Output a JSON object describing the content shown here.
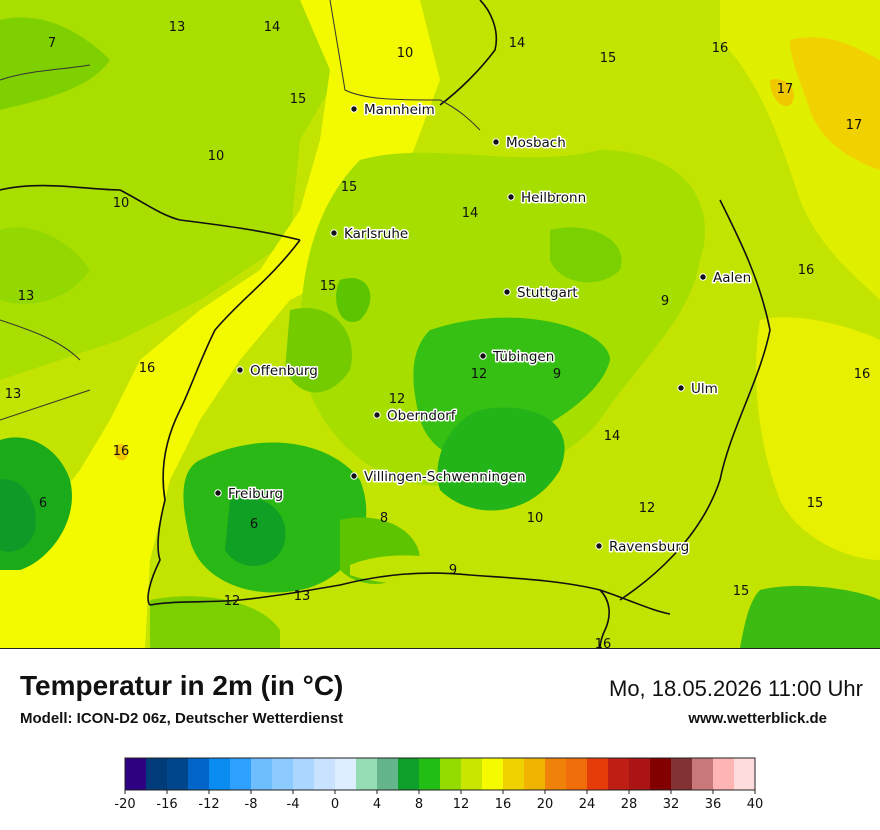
{
  "title": "Temperatur in 2m (in °C)",
  "model": "Modell: ICON-D2 06z, Deutscher Wetterdienst",
  "datetime": "Mo, 18.05.2026 11:00 Uhr",
  "website": "www.wetterblick.de",
  "cities": [
    {
      "name": "Mannheim"
    },
    {
      "name": "Mosbach"
    },
    {
      "name": "Heilbronn"
    },
    {
      "name": "Karlsruhe"
    },
    {
      "name": "Aalen"
    },
    {
      "name": "Stuttgart"
    },
    {
      "name": "Tübingen"
    },
    {
      "name": "Offenburg"
    },
    {
      "name": "Ulm"
    },
    {
      "name": "Oberndorf"
    },
    {
      "name": "Villingen-Schwenningen"
    },
    {
      "name": "Freiburg"
    },
    {
      "name": "Ravensburg"
    }
  ],
  "temperature_labels": [
    "7",
    "13",
    "14",
    "10",
    "14",
    "15",
    "16",
    "17",
    "15",
    "17",
    "10",
    "15",
    "10",
    "14",
    "13",
    "13",
    "15",
    "16",
    "9",
    "9",
    "13",
    "16",
    "12",
    "9",
    "16",
    "12",
    "14",
    "16",
    "6",
    "6",
    "8",
    "10",
    "12",
    "15",
    "9",
    "12",
    "13",
    "15",
    "16"
  ],
  "legend": {
    "ticks": [
      "-20",
      "-16",
      "-12",
      "-8",
      "-4",
      "0",
      "4",
      "8",
      "12",
      "16",
      "20",
      "24",
      "28",
      "32",
      "36",
      "40"
    ],
    "colors": [
      "#2f0082",
      "#003c7a",
      "#00468c",
      "#0064c8",
      "#0a8cf0",
      "#2ea0ff",
      "#6ebeff",
      "#8ccaff",
      "#aad6ff",
      "#c8e2ff",
      "#dceeff",
      "#96dcb4",
      "#64b48c",
      "#0ea02a",
      "#22be16",
      "#94dc00",
      "#c8e600",
      "#f5fa00",
      "#f0d200",
      "#f0b400",
      "#f0820a",
      "#f06e0a",
      "#e63c0a",
      "#be1e14",
      "#aa1414",
      "#820000",
      "#823232",
      "#c87878",
      "#ffb4b4",
      "#ffdcdc"
    ]
  }
}
